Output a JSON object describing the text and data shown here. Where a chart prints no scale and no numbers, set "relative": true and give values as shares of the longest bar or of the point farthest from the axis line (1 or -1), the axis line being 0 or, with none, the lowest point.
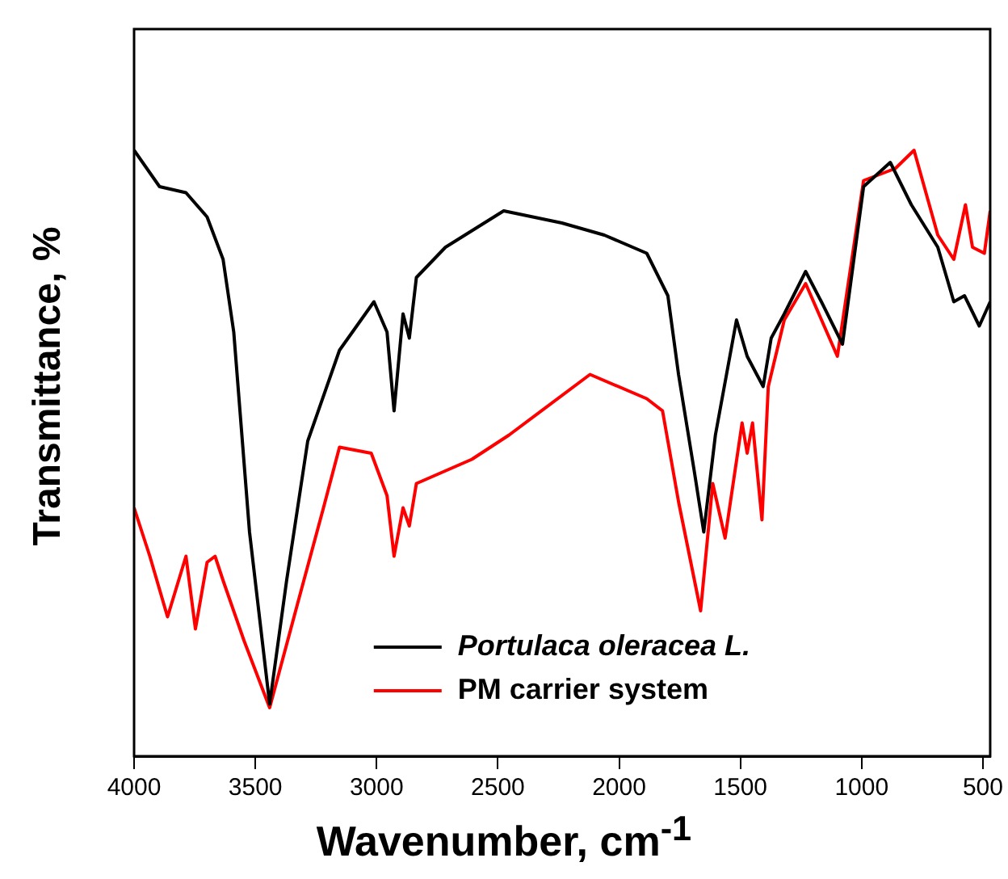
{
  "chart_data": {
    "type": "line",
    "xlabel": "Wavenumber, cm$^{-1}$",
    "ylabel": "Transmittance, %",
    "relative": true,
    "xlim": [
      4000,
      470
    ],
    "xticks": [
      4000,
      3500,
      3000,
      2500,
      2000,
      1500,
      1000,
      500
    ],
    "legend": "bottom",
    "grid": false,
    "marker": "none",
    "line_style": "solid",
    "series": [
      {
        "name": "Portulaca oleracea L.",
        "color": "#000000",
        "x": [
          4000,
          3895,
          3786,
          3699,
          3633,
          3589,
          3524,
          3441,
          3371,
          3284,
          3153,
          3011,
          2957,
          2928,
          2891,
          2865,
          2836,
          2716,
          2476,
          2236,
          2061,
          1886,
          1799,
          1755,
          1690,
          1651,
          1603,
          1516,
          1472,
          1406,
          1373,
          1319,
          1231,
          1166,
          1079,
          992,
          882,
          795,
          686,
          620,
          576,
          515,
          470
        ],
        "values": [
          1.0,
          0.94,
          0.93,
          0.89,
          0.82,
          0.7,
          0.37,
          0.086,
          0.29,
          0.52,
          0.67,
          0.75,
          0.7,
          0.57,
          0.73,
          0.69,
          0.79,
          0.84,
          0.9,
          0.88,
          0.86,
          0.83,
          0.76,
          0.63,
          0.47,
          0.37,
          0.53,
          0.72,
          0.66,
          0.61,
          0.69,
          0.73,
          0.8,
          0.75,
          0.68,
          0.94,
          0.98,
          0.91,
          0.84,
          0.75,
          0.76,
          0.71,
          0.75
        ]
      },
      {
        "name": "PM carrier system",
        "color": "#ff0000",
        "x": [
          4000,
          3935,
          3862,
          3786,
          3747,
          3699,
          3666,
          3633,
          3546,
          3441,
          3327,
          3219,
          3153,
          3022,
          2957,
          2928,
          2891,
          2865,
          2836,
          2607,
          2454,
          2120,
          1886,
          1821,
          1755,
          1664,
          1614,
          1563,
          1493,
          1472,
          1450,
          1411,
          1385,
          1319,
          1231,
          1100,
          992,
          861,
          784,
          686,
          620,
          572,
          543,
          494,
          470
        ],
        "values": [
          0.41,
          0.33,
          0.23,
          0.33,
          0.21,
          0.32,
          0.33,
          0.29,
          0.19,
          0.08,
          0.25,
          0.41,
          0.51,
          0.5,
          0.43,
          0.33,
          0.41,
          0.38,
          0.45,
          0.49,
          0.53,
          0.63,
          0.59,
          0.57,
          0.42,
          0.24,
          0.45,
          0.36,
          0.55,
          0.5,
          0.55,
          0.39,
          0.61,
          0.72,
          0.78,
          0.66,
          0.95,
          0.97,
          1.0,
          0.86,
          0.82,
          0.91,
          0.84,
          0.83,
          0.9
        ]
      }
    ]
  }
}
